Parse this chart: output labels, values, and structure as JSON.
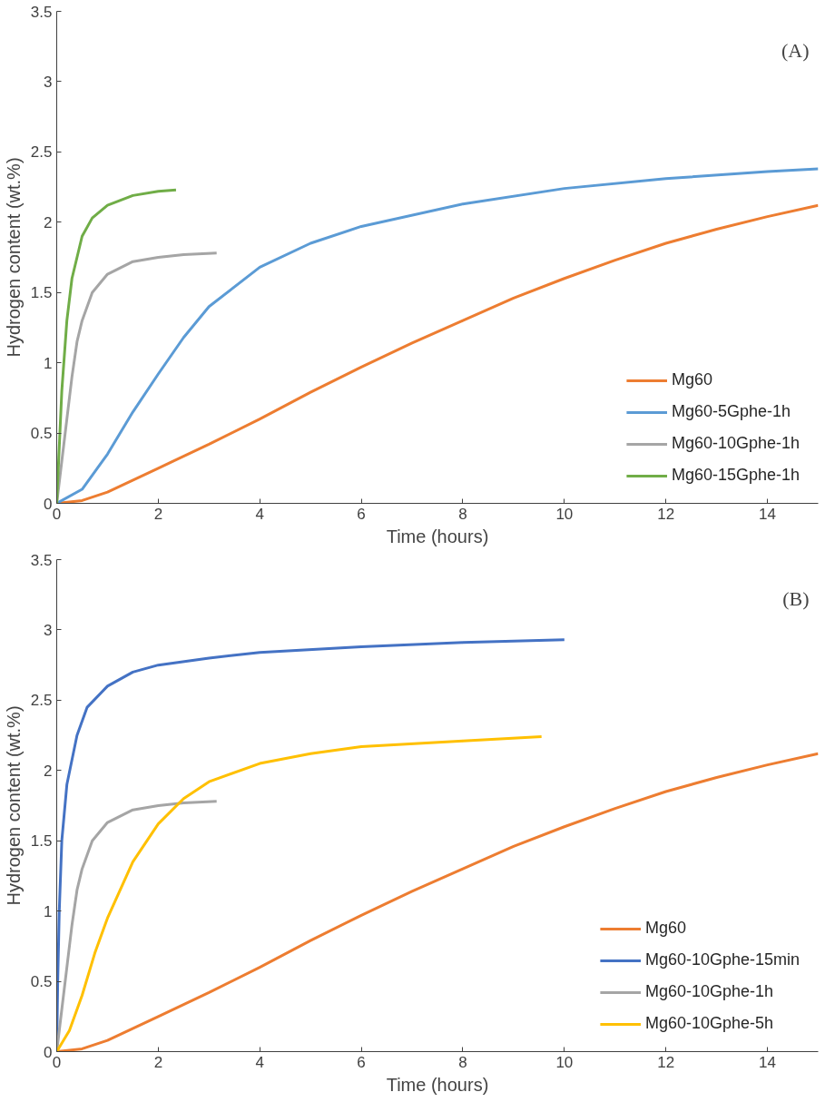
{
  "chart_data": [
    {
      "type": "line",
      "xlabel": "Time (hours)",
      "ylabel": "Hydrogen content (wt.%)",
      "annotations": [
        "(A)"
      ],
      "xlim": [
        0,
        15
      ],
      "ylim": [
        0,
        3.5
      ],
      "xticks": [
        0,
        2,
        4,
        6,
        8,
        10,
        12,
        14
      ],
      "yticks": [
        0,
        0.5,
        1,
        1.5,
        2,
        2.5,
        3,
        3.5
      ],
      "grid": false,
      "legend": "bottom right",
      "marker": "none",
      "line_style": "solid",
      "series": [
        {
          "name": "Mg60",
          "color": "#ed7d31",
          "x": [
            0,
            0.5,
            1,
            2,
            3,
            4,
            5,
            6,
            7,
            8,
            9,
            10,
            11,
            12,
            13,
            14,
            15
          ],
          "values": [
            0,
            0.02,
            0.08,
            0.25,
            0.42,
            0.6,
            0.79,
            0.97,
            1.14,
            1.3,
            1.46,
            1.6,
            1.73,
            1.85,
            1.95,
            2.04,
            2.12
          ]
        },
        {
          "name": "Mg60-5Gphe-1h",
          "color": "#5b9bd5",
          "x": [
            0,
            0.5,
            1,
            1.5,
            2,
            2.5,
            3,
            4,
            5,
            6,
            8,
            10,
            12,
            14,
            15
          ],
          "values": [
            0,
            0.1,
            0.35,
            0.65,
            0.92,
            1.18,
            1.4,
            1.68,
            1.85,
            1.97,
            2.13,
            2.24,
            2.31,
            2.36,
            2.38
          ]
        },
        {
          "name": "Mg60-10Gphe-1h",
          "color": "#a5a5a5",
          "x": [
            0,
            0.1,
            0.2,
            0.3,
            0.4,
            0.5,
            0.7,
            1,
            1.5,
            2,
            2.5,
            3.15
          ],
          "values": [
            0,
            0.3,
            0.6,
            0.9,
            1.15,
            1.3,
            1.5,
            1.63,
            1.72,
            1.75,
            1.77,
            1.78
          ]
        },
        {
          "name": "Mg60-15Gphe-1h",
          "color": "#70ad47",
          "x": [
            0,
            0.05,
            0.1,
            0.2,
            0.3,
            0.5,
            0.7,
            1,
            1.5,
            2,
            2.35
          ],
          "values": [
            0,
            0.4,
            0.8,
            1.3,
            1.6,
            1.9,
            2.03,
            2.12,
            2.19,
            2.22,
            2.23
          ]
        }
      ]
    },
    {
      "type": "line",
      "xlabel": "Time (hours)",
      "ylabel": "Hydrogen content (wt.%)",
      "annotations": [
        "(B)"
      ],
      "xlim": [
        0,
        15
      ],
      "ylim": [
        0,
        3.5
      ],
      "xticks": [
        0,
        2,
        4,
        6,
        8,
        10,
        12,
        14
      ],
      "yticks": [
        0,
        0.5,
        1,
        1.5,
        2,
        2.5,
        3,
        3.5
      ],
      "grid": false,
      "legend": "bottom right",
      "marker": "none",
      "line_style": "solid",
      "series": [
        {
          "name": "Mg60",
          "color": "#ed7d31",
          "x": [
            0,
            0.5,
            1,
            2,
            3,
            4,
            5,
            6,
            7,
            8,
            9,
            10,
            11,
            12,
            13,
            14,
            15
          ],
          "values": [
            0,
            0.02,
            0.08,
            0.25,
            0.42,
            0.6,
            0.79,
            0.97,
            1.14,
            1.3,
            1.46,
            1.6,
            1.73,
            1.85,
            1.95,
            2.04,
            2.12
          ]
        },
        {
          "name": "Mg60-10Gphe-15min",
          "color": "#4472c4",
          "x": [
            0,
            0.02,
            0.05,
            0.1,
            0.2,
            0.4,
            0.6,
            1,
            1.5,
            2,
            3,
            4,
            6,
            8,
            10
          ],
          "values": [
            0,
            0.5,
            1.0,
            1.5,
            1.9,
            2.25,
            2.45,
            2.6,
            2.7,
            2.75,
            2.8,
            2.84,
            2.88,
            2.91,
            2.93
          ]
        },
        {
          "name": "Mg60-10Gphe-1h",
          "color": "#a5a5a5",
          "x": [
            0,
            0.1,
            0.2,
            0.3,
            0.4,
            0.5,
            0.7,
            1,
            1.5,
            2,
            2.5,
            3.15
          ],
          "values": [
            0,
            0.3,
            0.6,
            0.9,
            1.15,
            1.3,
            1.5,
            1.63,
            1.72,
            1.75,
            1.77,
            1.78
          ]
        },
        {
          "name": "Mg60-10Gphe-5h",
          "color": "#ffc000",
          "x": [
            0,
            0.25,
            0.5,
            0.75,
            1,
            1.5,
            2,
            2.5,
            3,
            4,
            5,
            6,
            8,
            9.55
          ],
          "values": [
            0,
            0.15,
            0.4,
            0.7,
            0.95,
            1.35,
            1.62,
            1.8,
            1.92,
            2.05,
            2.12,
            2.17,
            2.21,
            2.24
          ]
        }
      ]
    }
  ]
}
